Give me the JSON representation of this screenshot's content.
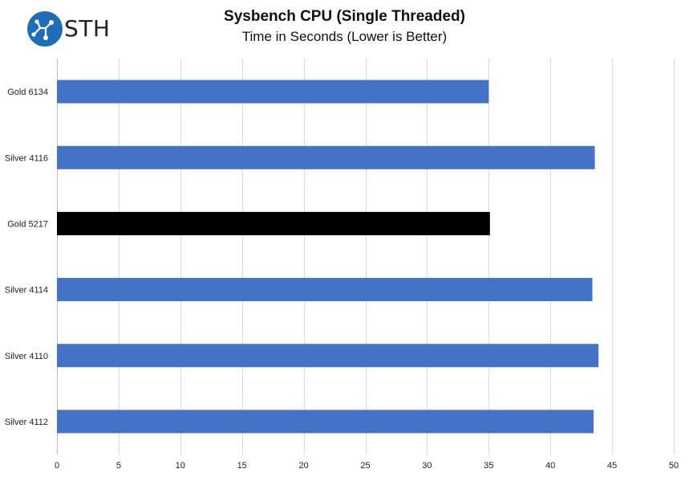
{
  "branding": {
    "logo_text": "STH",
    "logo_color": "#1f6db5"
  },
  "chart_data": {
    "type": "bar",
    "orientation": "horizontal",
    "title": "Sysbench CPU (Single Threaded)",
    "subtitle": "Time in Seconds (Lower is Better)",
    "xlabel": "",
    "ylabel": "",
    "categories": [
      "Gold 6134",
      "Silver 4116",
      "Gold 5217",
      "Silver 4114",
      "Silver 4110",
      "Silver 4112"
    ],
    "values": [
      35.0,
      43.6,
      35.1,
      43.4,
      43.9,
      43.5
    ],
    "bar_colors": [
      "#4472c4",
      "#4472c4",
      "#000000",
      "#4472c4",
      "#4472c4",
      "#4472c4"
    ],
    "xlim": [
      0,
      50
    ],
    "xticks": [
      0,
      5,
      10,
      15,
      20,
      25,
      30,
      35,
      40,
      45,
      50
    ],
    "grid": true,
    "legend": "none"
  }
}
